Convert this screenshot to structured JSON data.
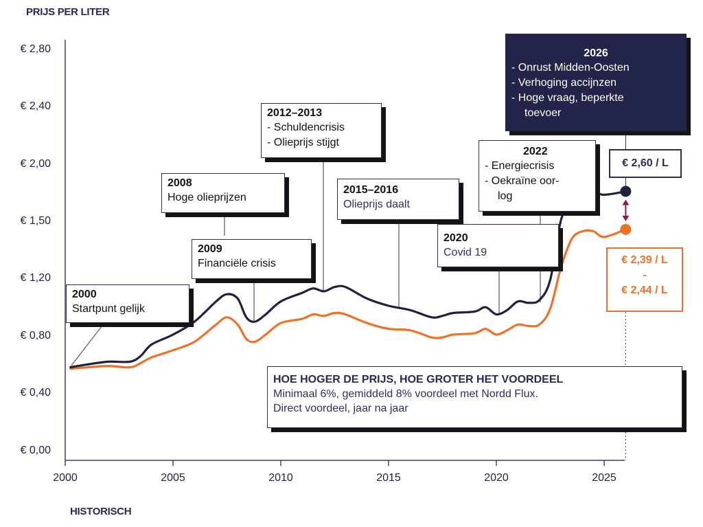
{
  "chart_data": {
    "type": "line",
    "title": "",
    "ylabel": "PRIJS PER LITER",
    "xlabel": "HISTORISCH",
    "xlim": [
      2000,
      2026
    ],
    "ylim": [
      0,
      2.8
    ],
    "y_ticks": [
      0,
      0.4,
      0.8,
      1.2,
      1.5,
      2.0,
      2.4,
      2.8
    ],
    "y_tick_labels": [
      "€ 0,00",
      "€ 0,40",
      "€ 0,80",
      "€ 1,20",
      "€ 1,50",
      "€ 2,00",
      "€ 2,40",
      "€ 2,80"
    ],
    "x_ticks": [
      2000,
      2005,
      2010,
      2015,
      2020,
      2025
    ],
    "x_tick_labels": [
      "2000",
      "2005",
      "2010",
      "2015",
      "2020",
      "2025"
    ],
    "grid": false,
    "series": [
      {
        "color": "#1e2140",
        "points": [
          [
            2000.2,
            0.57
          ],
          [
            2001,
            0.59
          ],
          [
            2002,
            0.61
          ],
          [
            2003,
            0.61
          ],
          [
            2003.5,
            0.65
          ],
          [
            2004,
            0.73
          ],
          [
            2005,
            0.8
          ],
          [
            2006,
            0.89
          ],
          [
            2007,
            1.03
          ],
          [
            2007.5,
            1.08
          ],
          [
            2008,
            1.05
          ],
          [
            2008.4,
            0.92
          ],
          [
            2008.8,
            0.89
          ],
          [
            2009.3,
            0.94
          ],
          [
            2010,
            1.03
          ],
          [
            2011,
            1.09
          ],
          [
            2011.5,
            1.12
          ],
          [
            2012,
            1.1
          ],
          [
            2012.5,
            1.13
          ],
          [
            2013,
            1.13
          ],
          [
            2014,
            1.05
          ],
          [
            2015,
            1.0
          ],
          [
            2016,
            0.97
          ],
          [
            2017,
            0.92
          ],
          [
            2017.5,
            0.93
          ],
          [
            2018,
            0.95
          ],
          [
            2019,
            0.96
          ],
          [
            2019.5,
            0.99
          ],
          [
            2020,
            0.94
          ],
          [
            2020.5,
            0.97
          ],
          [
            2021,
            1.03
          ],
          [
            2021.5,
            1.02
          ],
          [
            2022,
            1.04
          ],
          [
            2022.5,
            1.18
          ],
          [
            2023,
            1.5
          ],
          [
            2023.5,
            1.66
          ],
          [
            2024,
            1.76
          ],
          [
            2024.5,
            1.75
          ],
          [
            2025,
            1.72
          ],
          [
            2026,
            1.75
          ]
        ]
      },
      {
        "color": "#ee7127",
        "points": [
          [
            2000.2,
            0.56
          ],
          [
            2001,
            0.57
          ],
          [
            2002,
            0.58
          ],
          [
            2003,
            0.57
          ],
          [
            2003.5,
            0.6
          ],
          [
            2004,
            0.64
          ],
          [
            2005,
            0.69
          ],
          [
            2006,
            0.75
          ],
          [
            2007,
            0.87
          ],
          [
            2007.5,
            0.92
          ],
          [
            2008,
            0.87
          ],
          [
            2008.4,
            0.77
          ],
          [
            2008.8,
            0.75
          ],
          [
            2009.3,
            0.8
          ],
          [
            2010,
            0.88
          ],
          [
            2011,
            0.91
          ],
          [
            2011.5,
            0.94
          ],
          [
            2012,
            0.93
          ],
          [
            2012.5,
            0.95
          ],
          [
            2013,
            0.94
          ],
          [
            2014,
            0.88
          ],
          [
            2015,
            0.84
          ],
          [
            2016,
            0.83
          ],
          [
            2017,
            0.78
          ],
          [
            2017.5,
            0.78
          ],
          [
            2018,
            0.8
          ],
          [
            2019,
            0.81
          ],
          [
            2019.5,
            0.84
          ],
          [
            2020,
            0.8
          ],
          [
            2020.5,
            0.83
          ],
          [
            2021,
            0.87
          ],
          [
            2021.5,
            0.86
          ],
          [
            2022,
            0.87
          ],
          [
            2022.5,
            0.98
          ],
          [
            2023,
            1.25
          ],
          [
            2023.5,
            1.4
          ],
          [
            2024,
            1.44
          ],
          [
            2024.5,
            1.44
          ],
          [
            2025,
            1.41
          ],
          [
            2026,
            1.45
          ]
        ]
      }
    ],
    "annotations": [
      {
        "year": "2000",
        "lines": [
          "Startpunt gelijk"
        ]
      },
      {
        "year": "2008",
        "lines": [
          "Hoge olieprijzen"
        ]
      },
      {
        "year": "2009",
        "lines": [
          "Financiële crisis"
        ]
      },
      {
        "year": "2012–2013",
        "lines": [
          "- Schuldencrisis",
          "- Olieprijs stijgt"
        ]
      },
      {
        "year": "2015–2016",
        "lines": [
          "Olieprijs daalt"
        ]
      },
      {
        "year": "2020",
        "lines": [
          "Covid 19"
        ]
      },
      {
        "year": "2022",
        "lines": [
          "- Energiecrisis",
          "- Oekraïne oor-",
          "log"
        ]
      },
      {
        "year": "2026",
        "lines": [
          "- Onrust Midden-Oosten",
          "- Verhoging accijnzen",
          "- Hoge vraag, beperkte",
          "toevoer"
        ]
      }
    ],
    "price_labels": {
      "navy": "€ 2,60 / L",
      "orange_top": "€ 2,39 / L",
      "orange_mid": "-",
      "orange_bottom": "€ 2,44 / L"
    },
    "benefit": {
      "title": "HOE HOGER DE PRIJS, HOE GROTER HET VOORDEEL",
      "line1": "Minimaal 6%, gemiddeld 8% voordeel met Nordd Flux.",
      "line2": "Direct voordeel, jaar na jaar"
    }
  },
  "colors": {
    "navy": "#1e2140",
    "orange": "#ee7127",
    "axis": "#3c4262",
    "marker_line": "#6c7a8e",
    "arrow": "#8d1d3a"
  }
}
